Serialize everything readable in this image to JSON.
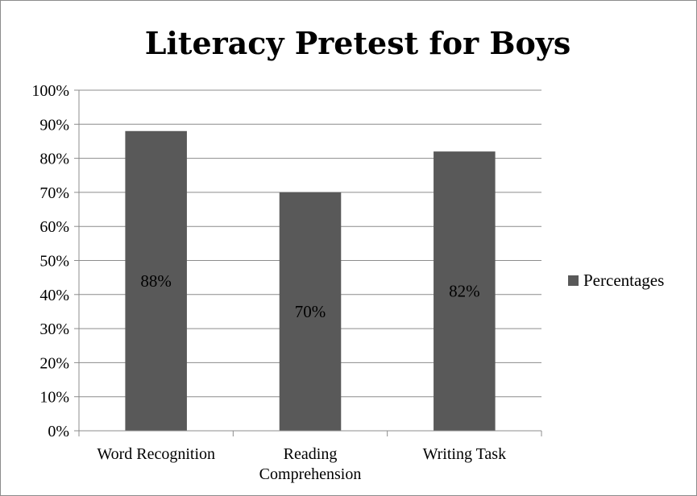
{
  "chart_data": {
    "type": "bar",
    "title": "Literacy Pretest for Boys",
    "categories": [
      [
        "Word Recognition"
      ],
      [
        "Reading",
        "Comprehension"
      ],
      [
        "Writing Task"
      ]
    ],
    "series": [
      {
        "name": "Percentages",
        "values": [
          88,
          70,
          82
        ],
        "color": "#595959"
      }
    ],
    "data_labels": [
      "88%",
      "70%",
      "82%"
    ],
    "y_ticks": [
      "0%",
      "10%",
      "20%",
      "30%",
      "40%",
      "50%",
      "60%",
      "70%",
      "80%",
      "90%",
      "100%"
    ],
    "ylim": [
      0,
      100
    ],
    "grid": true,
    "legend": "right",
    "gridline_color": "#8c8c8c"
  }
}
